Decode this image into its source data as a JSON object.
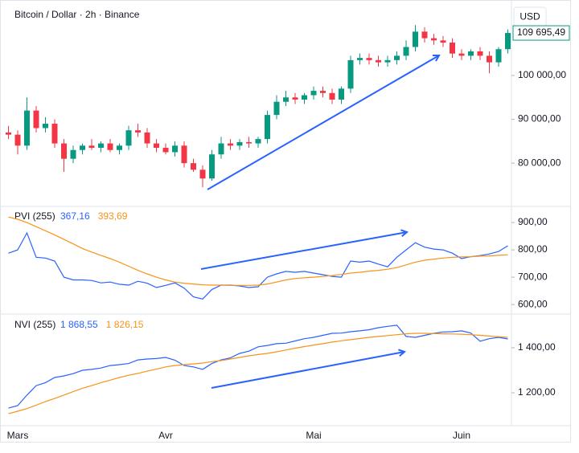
{
  "chart_data": [
    {
      "type": "candlestick",
      "title": "Bitcoin / Dollar · 2h · Binance",
      "currency": "USD",
      "open": [
        87000,
        86500,
        84000,
        92000,
        88000,
        89000,
        84500,
        81000,
        83000,
        84000,
        83500,
        84500,
        83000,
        84000,
        87500,
        87000,
        84500,
        83500,
        82500,
        84000,
        80000,
        78500,
        76500,
        82000,
        84500,
        84000,
        84800,
        84500,
        85500,
        91000,
        94000,
        95000,
        94500,
        95500,
        96500,
        96000,
        94500,
        97000,
        103500,
        104000,
        103500,
        103000,
        103500,
        104500,
        106500,
        110000,
        108500,
        108000,
        107500,
        105000,
        104500,
        105500,
        104500,
        103000,
        106000
      ],
      "high": [
        88500,
        87500,
        95000,
        93000,
        90500,
        90000,
        85500,
        84000,
        84500,
        85500,
        85000,
        85500,
        84500,
        88500,
        89000,
        88000,
        85500,
        84500,
        85000,
        85000,
        81000,
        79500,
        83000,
        86000,
        85500,
        85500,
        86000,
        86000,
        92000,
        95500,
        96500,
        96000,
        96000,
        97500,
        97500,
        97000,
        97500,
        104500,
        105000,
        105000,
        104500,
        104500,
        105500,
        108000,
        111500,
        111000,
        109500,
        109000,
        108500,
        106000,
        106000,
        106500,
        105500,
        106500,
        110500
      ],
      "low": [
        85500,
        82000,
        83000,
        87000,
        87000,
        83500,
        78000,
        80000,
        82000,
        83000,
        82500,
        82500,
        82000,
        83000,
        86000,
        83500,
        82500,
        82000,
        81500,
        79000,
        78000,
        74500,
        76000,
        81000,
        83000,
        83000,
        83500,
        83500,
        84500,
        90000,
        93000,
        93500,
        93500,
        94500,
        95000,
        93500,
        93500,
        96000,
        102500,
        102500,
        102000,
        102000,
        102500,
        103500,
        105500,
        107500,
        107000,
        106500,
        104000,
        103500,
        103500,
        103500,
        100500,
        102000,
        105000
      ],
      "close": [
        86500,
        84000,
        92000,
        88000,
        89000,
        84500,
        81000,
        83000,
        84000,
        83500,
        84500,
        83000,
        84000,
        87500,
        87000,
        84500,
        83500,
        82500,
        84000,
        80000,
        78500,
        76500,
        82000,
        84500,
        84000,
        84800,
        84500,
        85500,
        91000,
        94000,
        95000,
        94500,
        95500,
        96500,
        96000,
        94500,
        97000,
        103500,
        104000,
        103500,
        103000,
        103500,
        104500,
        106500,
        110000,
        108500,
        108000,
        107500,
        105000,
        104500,
        105500,
        104500,
        103000,
        106000,
        109695.49
      ],
      "up_color": "#089981",
      "down_color": "#f23645",
      "last_price": {
        "value": 109695.49,
        "label": "109 695,49"
      },
      "ylim": [
        70500,
        116300
      ],
      "yticks": [
        {
          "value": 80000,
          "label": "80 000,00"
        },
        {
          "value": 90000,
          "label": "90 000,00"
        },
        {
          "value": 100000,
          "label": "100 000,00"
        }
      ],
      "grid": false
    },
    {
      "type": "line",
      "title": "PVI (255)",
      "series": [
        {
          "name": "367,16",
          "color": "#2962ff",
          "values": [
            788,
            800,
            862,
            773,
            770,
            759,
            700,
            690,
            690,
            688,
            679,
            682,
            674,
            671,
            685,
            678,
            662,
            670,
            679,
            660,
            628,
            620,
            655,
            671,
            671,
            668,
            662,
            665,
            700,
            712,
            721,
            718,
            721,
            715,
            709,
            703,
            700,
            759,
            755,
            759,
            748,
            738,
            773,
            800,
            826,
            810,
            803,
            800,
            788,
            768,
            775,
            779,
            785,
            794,
            815
          ]
        },
        {
          "name": "393,69",
          "color": "#f7931a",
          "values": [
            920,
            912,
            900,
            885,
            870,
            855,
            838,
            822,
            805,
            792,
            780,
            768,
            755,
            740,
            725,
            712,
            700,
            690,
            682,
            678,
            675,
            672,
            671,
            671,
            670,
            670,
            670,
            671,
            675,
            682,
            690,
            695,
            698,
            700,
            703,
            706,
            710,
            715,
            718,
            722,
            725,
            729,
            735,
            745,
            755,
            762,
            766,
            770,
            773,
            774,
            775,
            777,
            778,
            780,
            782
          ]
        }
      ],
      "ylim": [
        568,
        956
      ],
      "yticks": [
        {
          "value": 600,
          "label": "600,00"
        },
        {
          "value": 700,
          "label": "700,00"
        },
        {
          "value": 800,
          "label": "800,00"
        },
        {
          "value": 900,
          "label": "900,00"
        }
      ],
      "grid": false
    },
    {
      "type": "line",
      "title": "NVI (255)",
      "categories": [
        null,
        "Mars",
        null,
        null,
        null,
        null,
        null,
        null,
        null,
        null,
        null,
        null,
        null,
        null,
        null,
        null,
        null,
        "Avr",
        null,
        null,
        null,
        null,
        null,
        null,
        null,
        null,
        null,
        null,
        null,
        null,
        null,
        null,
        null,
        "Mai",
        null,
        null,
        null,
        null,
        null,
        null,
        null,
        null,
        null,
        null,
        null,
        null,
        null,
        null,
        null,
        "Juin",
        null,
        null,
        null,
        null,
        null
      ],
      "series": [
        {
          "name": "1 868,55",
          "color": "#2962ff",
          "values": [
            1132,
            1143,
            1190,
            1232,
            1245,
            1268,
            1275,
            1285,
            1300,
            1304,
            1310,
            1321,
            1325,
            1330,
            1346,
            1350,
            1352,
            1357,
            1345,
            1321,
            1315,
            1304,
            1330,
            1346,
            1355,
            1375,
            1385,
            1404,
            1410,
            1418,
            1420,
            1430,
            1440,
            1446,
            1455,
            1464,
            1465,
            1471,
            1475,
            1480,
            1489,
            1495,
            1500,
            1450,
            1446,
            1455,
            1464,
            1470,
            1471,
            1475,
            1465,
            1429,
            1440,
            1446,
            1439
          ]
        },
        {
          "name": "1 826,15",
          "color": "#f7931a",
          "values": [
            1107,
            1118,
            1130,
            1145,
            1161,
            1175,
            1190,
            1205,
            1220,
            1232,
            1245,
            1256,
            1268,
            1278,
            1286,
            1296,
            1305,
            1315,
            1321,
            1325,
            1328,
            1332,
            1338,
            1343,
            1350,
            1357,
            1364,
            1370,
            1375,
            1382,
            1390,
            1398,
            1405,
            1412,
            1418,
            1425,
            1431,
            1436,
            1441,
            1446,
            1450,
            1454,
            1458,
            1462,
            1464,
            1464,
            1463,
            1462,
            1461,
            1460,
            1458,
            1455,
            1452,
            1449,
            1446
          ]
        }
      ],
      "ylim": [
        1054,
        1546
      ],
      "yticks": [
        {
          "value": 1200,
          "label": "1 200,00"
        },
        {
          "value": 1400,
          "label": "1 400,00"
        }
      ],
      "grid": false
    }
  ]
}
